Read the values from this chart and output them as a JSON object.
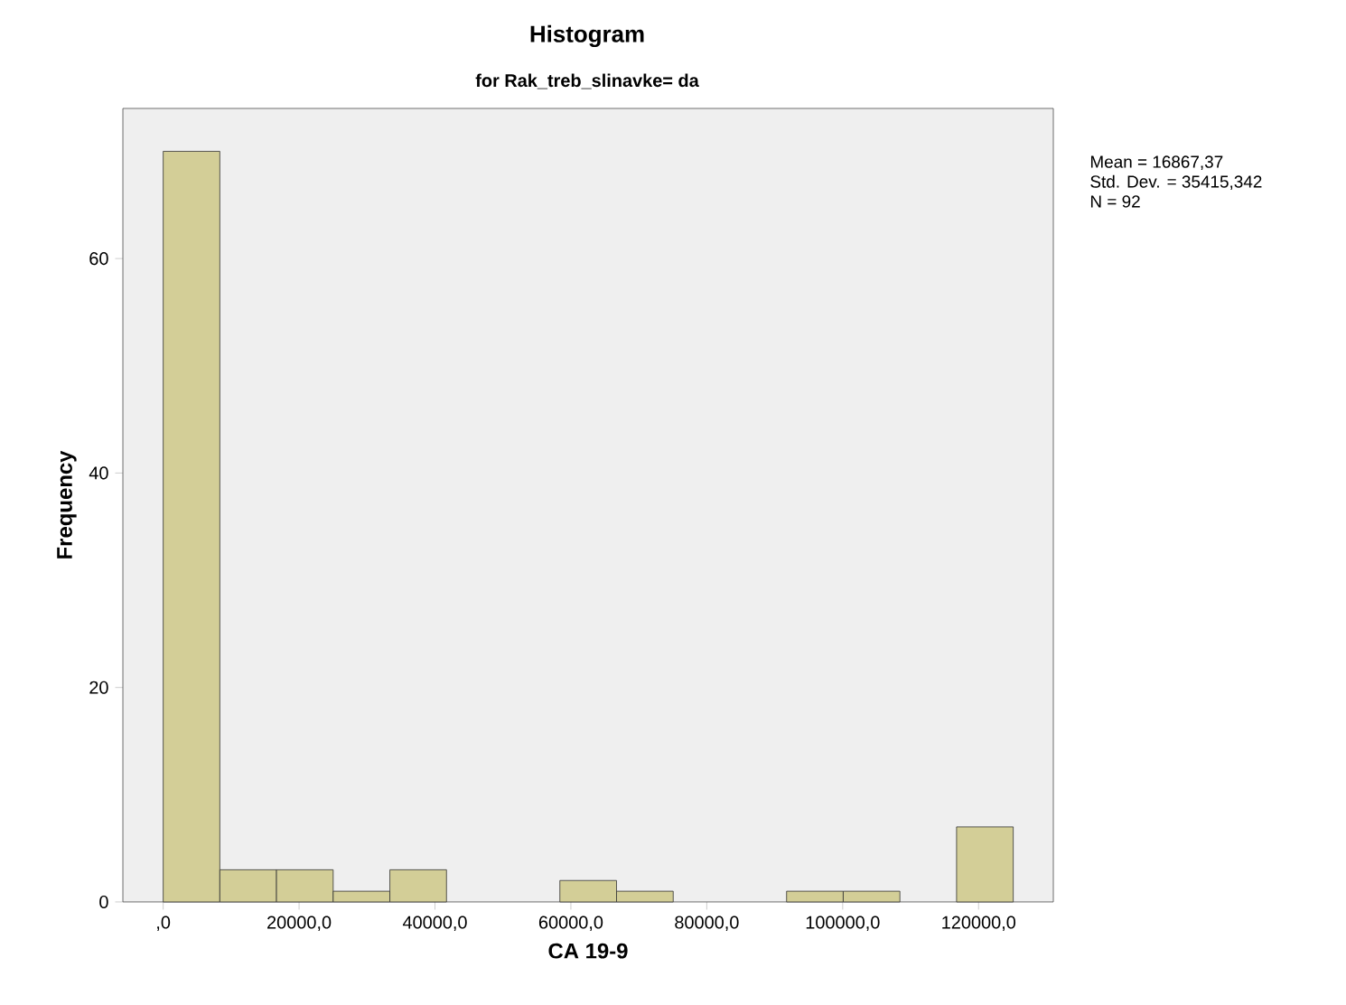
{
  "chart_data": {
    "type": "histogram",
    "title": "Histogram",
    "subtitle": "for Rak_treb_slinavke= da",
    "xlabel": "CA 19-9",
    "ylabel": "Frequency",
    "bins": [
      0,
      8340,
      16680,
      25020,
      33360,
      41700,
      50040,
      58380,
      66720,
      75060,
      83400,
      91740,
      100080,
      108420,
      116760,
      125100
    ],
    "values": [
      70,
      3,
      3,
      1,
      3,
      0,
      0,
      2,
      1,
      0,
      0,
      1,
      1,
      0,
      7
    ],
    "color": "#d3ce97",
    "xlim": [
      -5930,
      131000
    ],
    "ylim": [
      0,
      74
    ],
    "xticks": [
      {
        "value": 0,
        "label": ",0"
      },
      {
        "value": 20000,
        "label": "20000,0"
      },
      {
        "value": 40000,
        "label": "40000,0"
      },
      {
        "value": 60000,
        "label": "60000,0"
      },
      {
        "value": 80000,
        "label": "80000,0"
      },
      {
        "value": 100000,
        "label": "100000,0"
      },
      {
        "value": 120000,
        "label": "120000,0"
      }
    ],
    "yticks": [
      0,
      20,
      40,
      60
    ],
    "annotations": [
      "Mean = 16867,37",
      "Std. Dev. = 35415,342",
      "N = 92"
    ]
  }
}
